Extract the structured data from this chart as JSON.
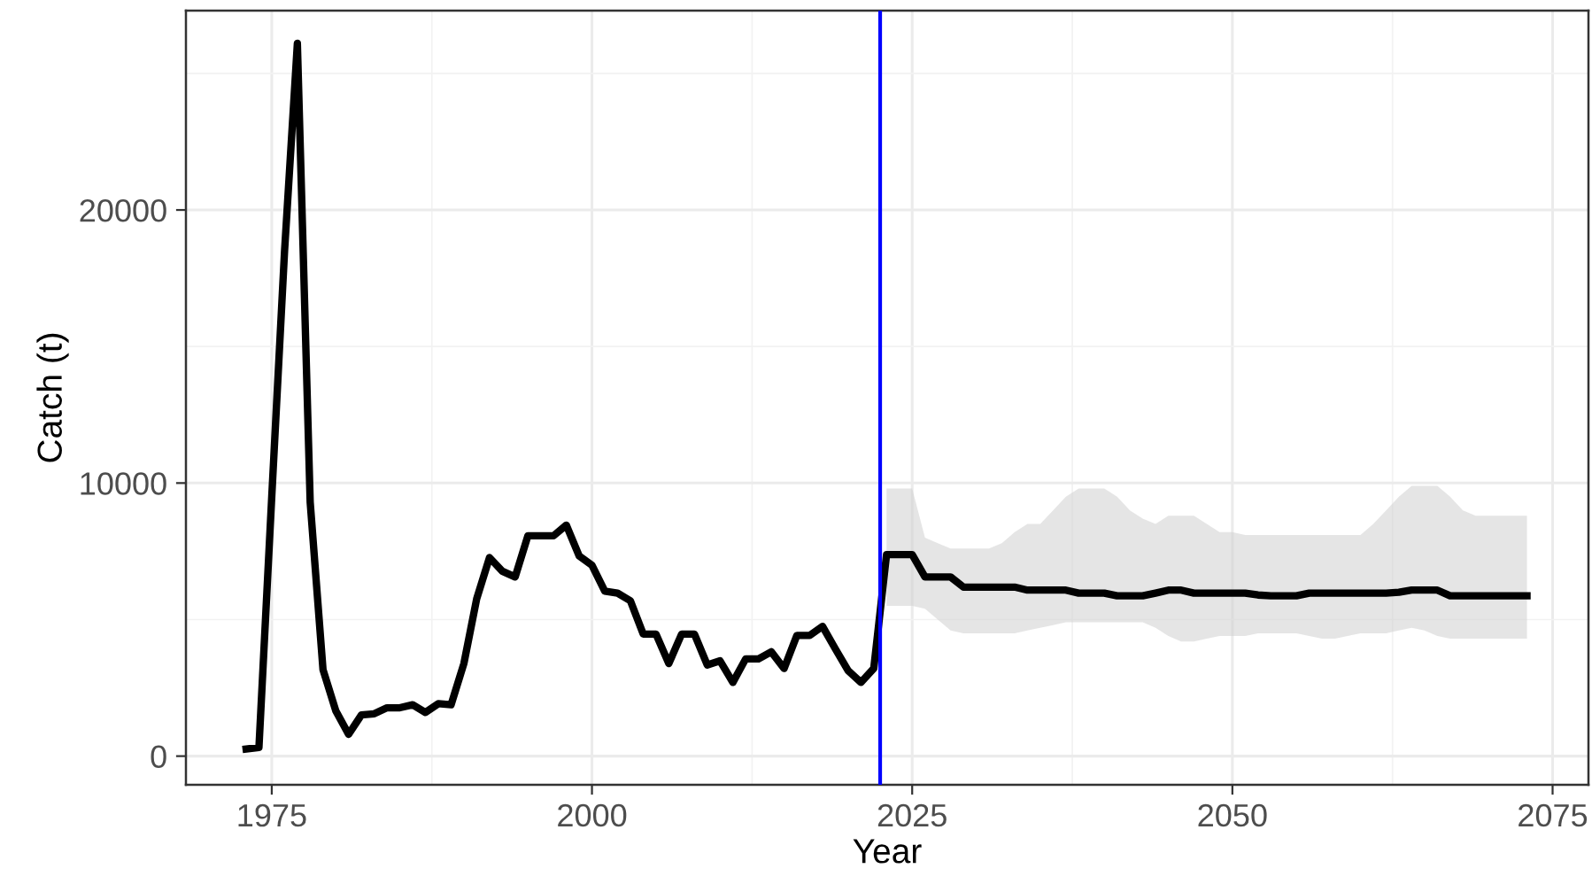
{
  "chart_data": {
    "type": "line",
    "xlabel": "Year",
    "ylabel": "Catch (t)",
    "x": [
      1973,
      1974,
      1975,
      1976,
      1977,
      1978,
      1979,
      1980,
      1981,
      1982,
      1983,
      1984,
      1985,
      1986,
      1987,
      1988,
      1989,
      1990,
      1991,
      1992,
      1993,
      1994,
      1995,
      1996,
      1997,
      1998,
      1999,
      2000,
      2001,
      2002,
      2003,
      2004,
      2005,
      2006,
      2007,
      2008,
      2009,
      2010,
      2011,
      2012,
      2013,
      2014,
      2015,
      2016,
      2017,
      2018,
      2019,
      2020,
      2021,
      2022,
      2023,
      2024,
      2025,
      2026,
      2027,
      2028,
      2029,
      2030,
      2031,
      2032,
      2033,
      2034,
      2035,
      2036,
      2037,
      2038,
      2039,
      2040,
      2041,
      2042,
      2043,
      2044,
      2045,
      2046,
      2047,
      2048,
      2049,
      2050,
      2051,
      2052,
      2053,
      2054,
      2055,
      2056,
      2057,
      2058,
      2059,
      2060,
      2061,
      2062,
      2063,
      2064,
      2065,
      2066,
      2067,
      2068,
      2069,
      2070,
      2071,
      2072,
      2073
    ],
    "series": [
      {
        "color": "#000000",
        "values": [
          260,
          320,
          9500,
          18500,
          26100,
          9300,
          3170,
          1660,
          800,
          1510,
          1550,
          1770,
          1770,
          1880,
          1600,
          1920,
          1880,
          3390,
          5760,
          7270,
          6770,
          6560,
          8070,
          8070,
          8070,
          8460,
          7330,
          6990,
          6040,
          5970,
          5690,
          4470,
          4470,
          3390,
          4470,
          4470,
          3340,
          3490,
          2700,
          3560,
          3560,
          3820,
          3210,
          4420,
          4420,
          4750,
          3930,
          3130,
          2700,
          3210,
          7380,
          7380,
          7380,
          6560,
          6560,
          6560,
          6190,
          6190,
          6190,
          6190,
          6190,
          6080,
          6080,
          6080,
          6080,
          5970,
          5970,
          5970,
          5870,
          5870,
          5870,
          5970,
          6080,
          6080,
          5970,
          5970,
          5970,
          5970,
          5970,
          5900,
          5870,
          5870,
          5870,
          5970,
          5970,
          5970,
          5970,
          5970,
          5970,
          5970,
          6000,
          6080,
          6080,
          6080,
          5870,
          5870,
          5870,
          5870,
          5870,
          5870,
          5870
        ],
        "lower": [
          null,
          null,
          null,
          null,
          null,
          null,
          null,
          null,
          null,
          null,
          null,
          null,
          null,
          null,
          null,
          null,
          null,
          null,
          null,
          null,
          null,
          null,
          null,
          null,
          null,
          null,
          null,
          null,
          null,
          null,
          null,
          null,
          null,
          null,
          null,
          null,
          null,
          null,
          null,
          null,
          null,
          null,
          null,
          null,
          null,
          null,
          null,
          null,
          null,
          null,
          5500,
          5500,
          5500,
          5400,
          5000,
          4600,
          4500,
          4500,
          4500,
          4500,
          4500,
          4600,
          4700,
          4800,
          4900,
          4900,
          4900,
          4900,
          4900,
          4900,
          4900,
          4700,
          4400,
          4200,
          4200,
          4300,
          4400,
          4400,
          4400,
          4500,
          4500,
          4500,
          4500,
          4400,
          4300,
          4300,
          4400,
          4500,
          4500,
          4500,
          4600,
          4700,
          4600,
          4400,
          4300,
          4300,
          4300,
          4300,
          4300,
          4300,
          4300
        ],
        "upper": [
          null,
          null,
          null,
          null,
          null,
          null,
          null,
          null,
          null,
          null,
          null,
          null,
          null,
          null,
          null,
          null,
          null,
          null,
          null,
          null,
          null,
          null,
          null,
          null,
          null,
          null,
          null,
          null,
          null,
          null,
          null,
          null,
          null,
          null,
          null,
          null,
          null,
          null,
          null,
          null,
          null,
          null,
          null,
          null,
          null,
          null,
          null,
          null,
          null,
          null,
          9800,
          9800,
          9800,
          8000,
          7800,
          7600,
          7600,
          7600,
          7600,
          7800,
          8200,
          8500,
          8500,
          9000,
          9500,
          9800,
          9800,
          9800,
          9500,
          9000,
          8700,
          8500,
          8800,
          8800,
          8800,
          8500,
          8200,
          8200,
          8100,
          8100,
          8100,
          8100,
          8100,
          8100,
          8100,
          8100,
          8100,
          8100,
          8500,
          9000,
          9500,
          9900,
          9900,
          9900,
          9500,
          9000,
          8800,
          8800,
          8800,
          8800,
          8800
        ]
      }
    ],
    "ref_lines": [
      {
        "axis": "x",
        "value": 2022.5,
        "color": "#0000ff"
      }
    ],
    "xlim": [
      1968.3,
      2077.8
    ],
    "xticks": [
      1975,
      2000,
      2025,
      2050,
      2075
    ],
    "ylim": [
      -1050,
      27300
    ],
    "yticks": [
      0,
      10000,
      20000
    ],
    "grid": true
  }
}
